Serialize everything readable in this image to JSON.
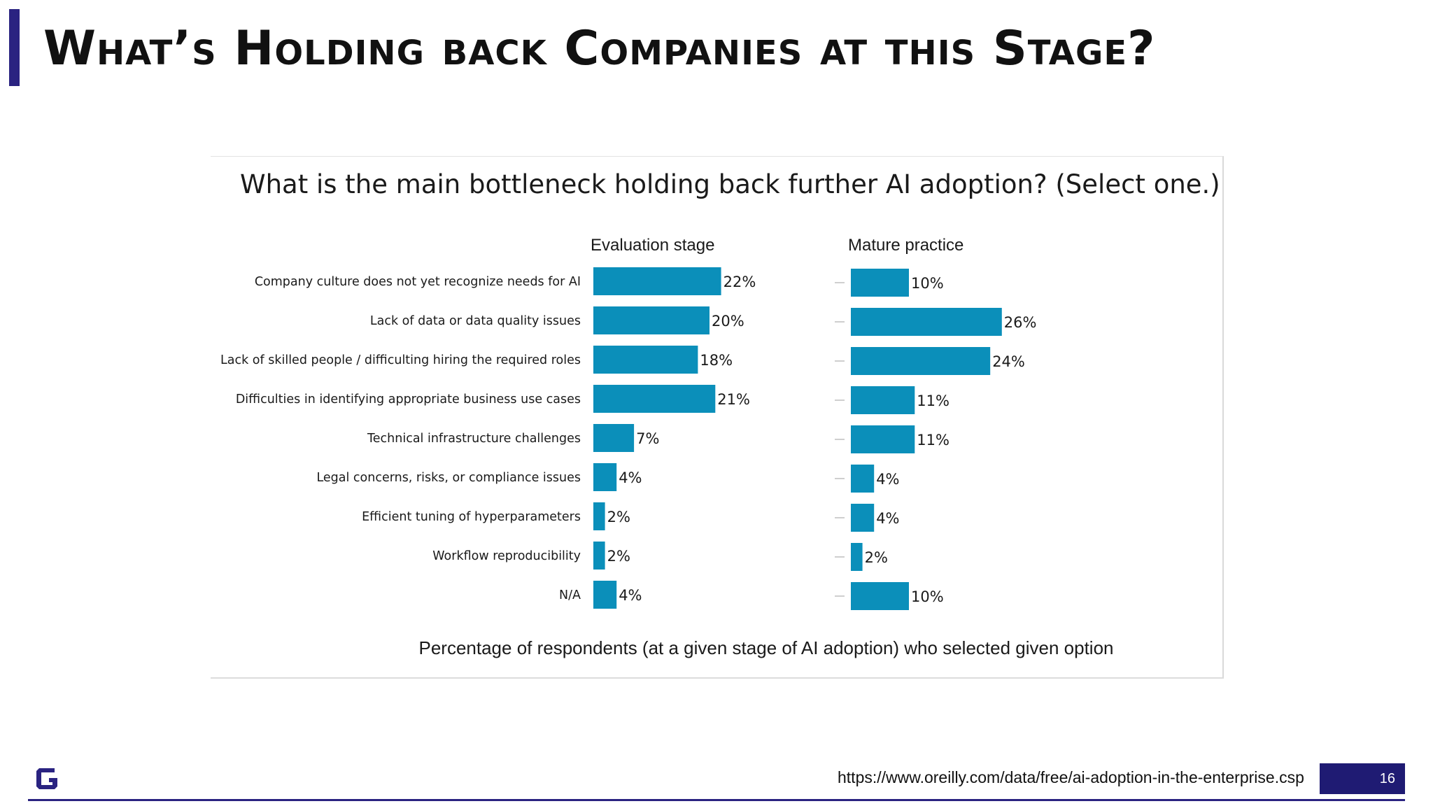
{
  "slide": {
    "title": "What’s Holding back Companies at this Stage?",
    "source_url": "https://www.oreilly.com/data/free/ai-adoption-in-the-enterprise.csp",
    "page_number": "16"
  },
  "colors": {
    "accent": "#2a2381",
    "bar": "#0b8fba",
    "page_badge": "#1f1b73"
  },
  "chart_data": {
    "type": "bar",
    "orientation": "horizontal",
    "title": "What is the main bottleneck holding back further AI adoption?  (Select one.)",
    "xlabel": "Percentage of respondents (at a given stage of AI adoption) who selected given option",
    "ylabel": "",
    "categories": [
      "Company culture does not yet recognize needs for AI",
      "Lack of data or data quality issues",
      "Lack of skilled people / difficulting hiring the required roles",
      "Difficulties in identifying appropriate business use cases",
      "Technical infrastructure challenges",
      "Legal concerns, risks, or compliance issues",
      "Efficient tuning of hyperparameters",
      "Workflow reproducibility",
      "N/A"
    ],
    "series": [
      {
        "name": "Evaluation stage",
        "values": [
          22,
          20,
          18,
          21,
          7,
          4,
          2,
          2,
          4
        ],
        "labels": [
          "22%",
          "20%",
          "18%",
          "21%",
          "7%",
          "4%",
          "2%",
          "2%",
          "4%"
        ]
      },
      {
        "name": "Mature practice",
        "values": [
          10,
          26,
          24,
          11,
          11,
          4,
          4,
          2,
          10
        ],
        "labels": [
          "10%",
          "26%",
          "24%",
          "11%",
          "11%",
          "4%",
          "4%",
          "2%",
          "10%"
        ]
      }
    ],
    "unit": "%",
    "grid": false,
    "legend": "panel headers"
  }
}
